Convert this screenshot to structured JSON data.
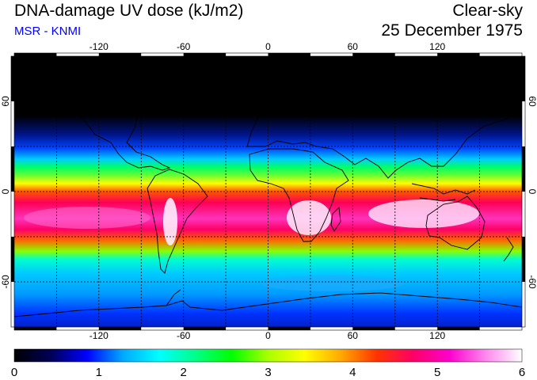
{
  "header": {
    "title": "DNA-damage UV dose (kJ/m2)",
    "source": "MSR - KNMI",
    "condition": "Clear-sky",
    "date": "25 December 1975"
  },
  "map": {
    "projection": "equirectangular",
    "lon_range": [
      -180,
      180
    ],
    "lat_range": [
      -90,
      90
    ],
    "graticule_step": 30,
    "lon_labels": [
      "-120",
      "-60",
      "0",
      "60",
      "120"
    ],
    "lat_labels": [
      "60",
      "0",
      "-60"
    ]
  },
  "colorbar": {
    "min": 0,
    "max": 6,
    "labels": [
      "0",
      "1",
      "2",
      "3",
      "4",
      "5",
      "6"
    ],
    "stops": [
      "#000000",
      "#000055",
      "#0000ff",
      "#00aaff",
      "#00ffff",
      "#00ff88",
      "#00ff00",
      "#aaff00",
      "#ffff00",
      "#ffaa00",
      "#ff3300",
      "#ff0066",
      "#ff00cc",
      "#ff88ee",
      "#ffffff"
    ]
  },
  "colors": {
    "text_title": "#000000",
    "text_source": "#0000ff"
  }
}
